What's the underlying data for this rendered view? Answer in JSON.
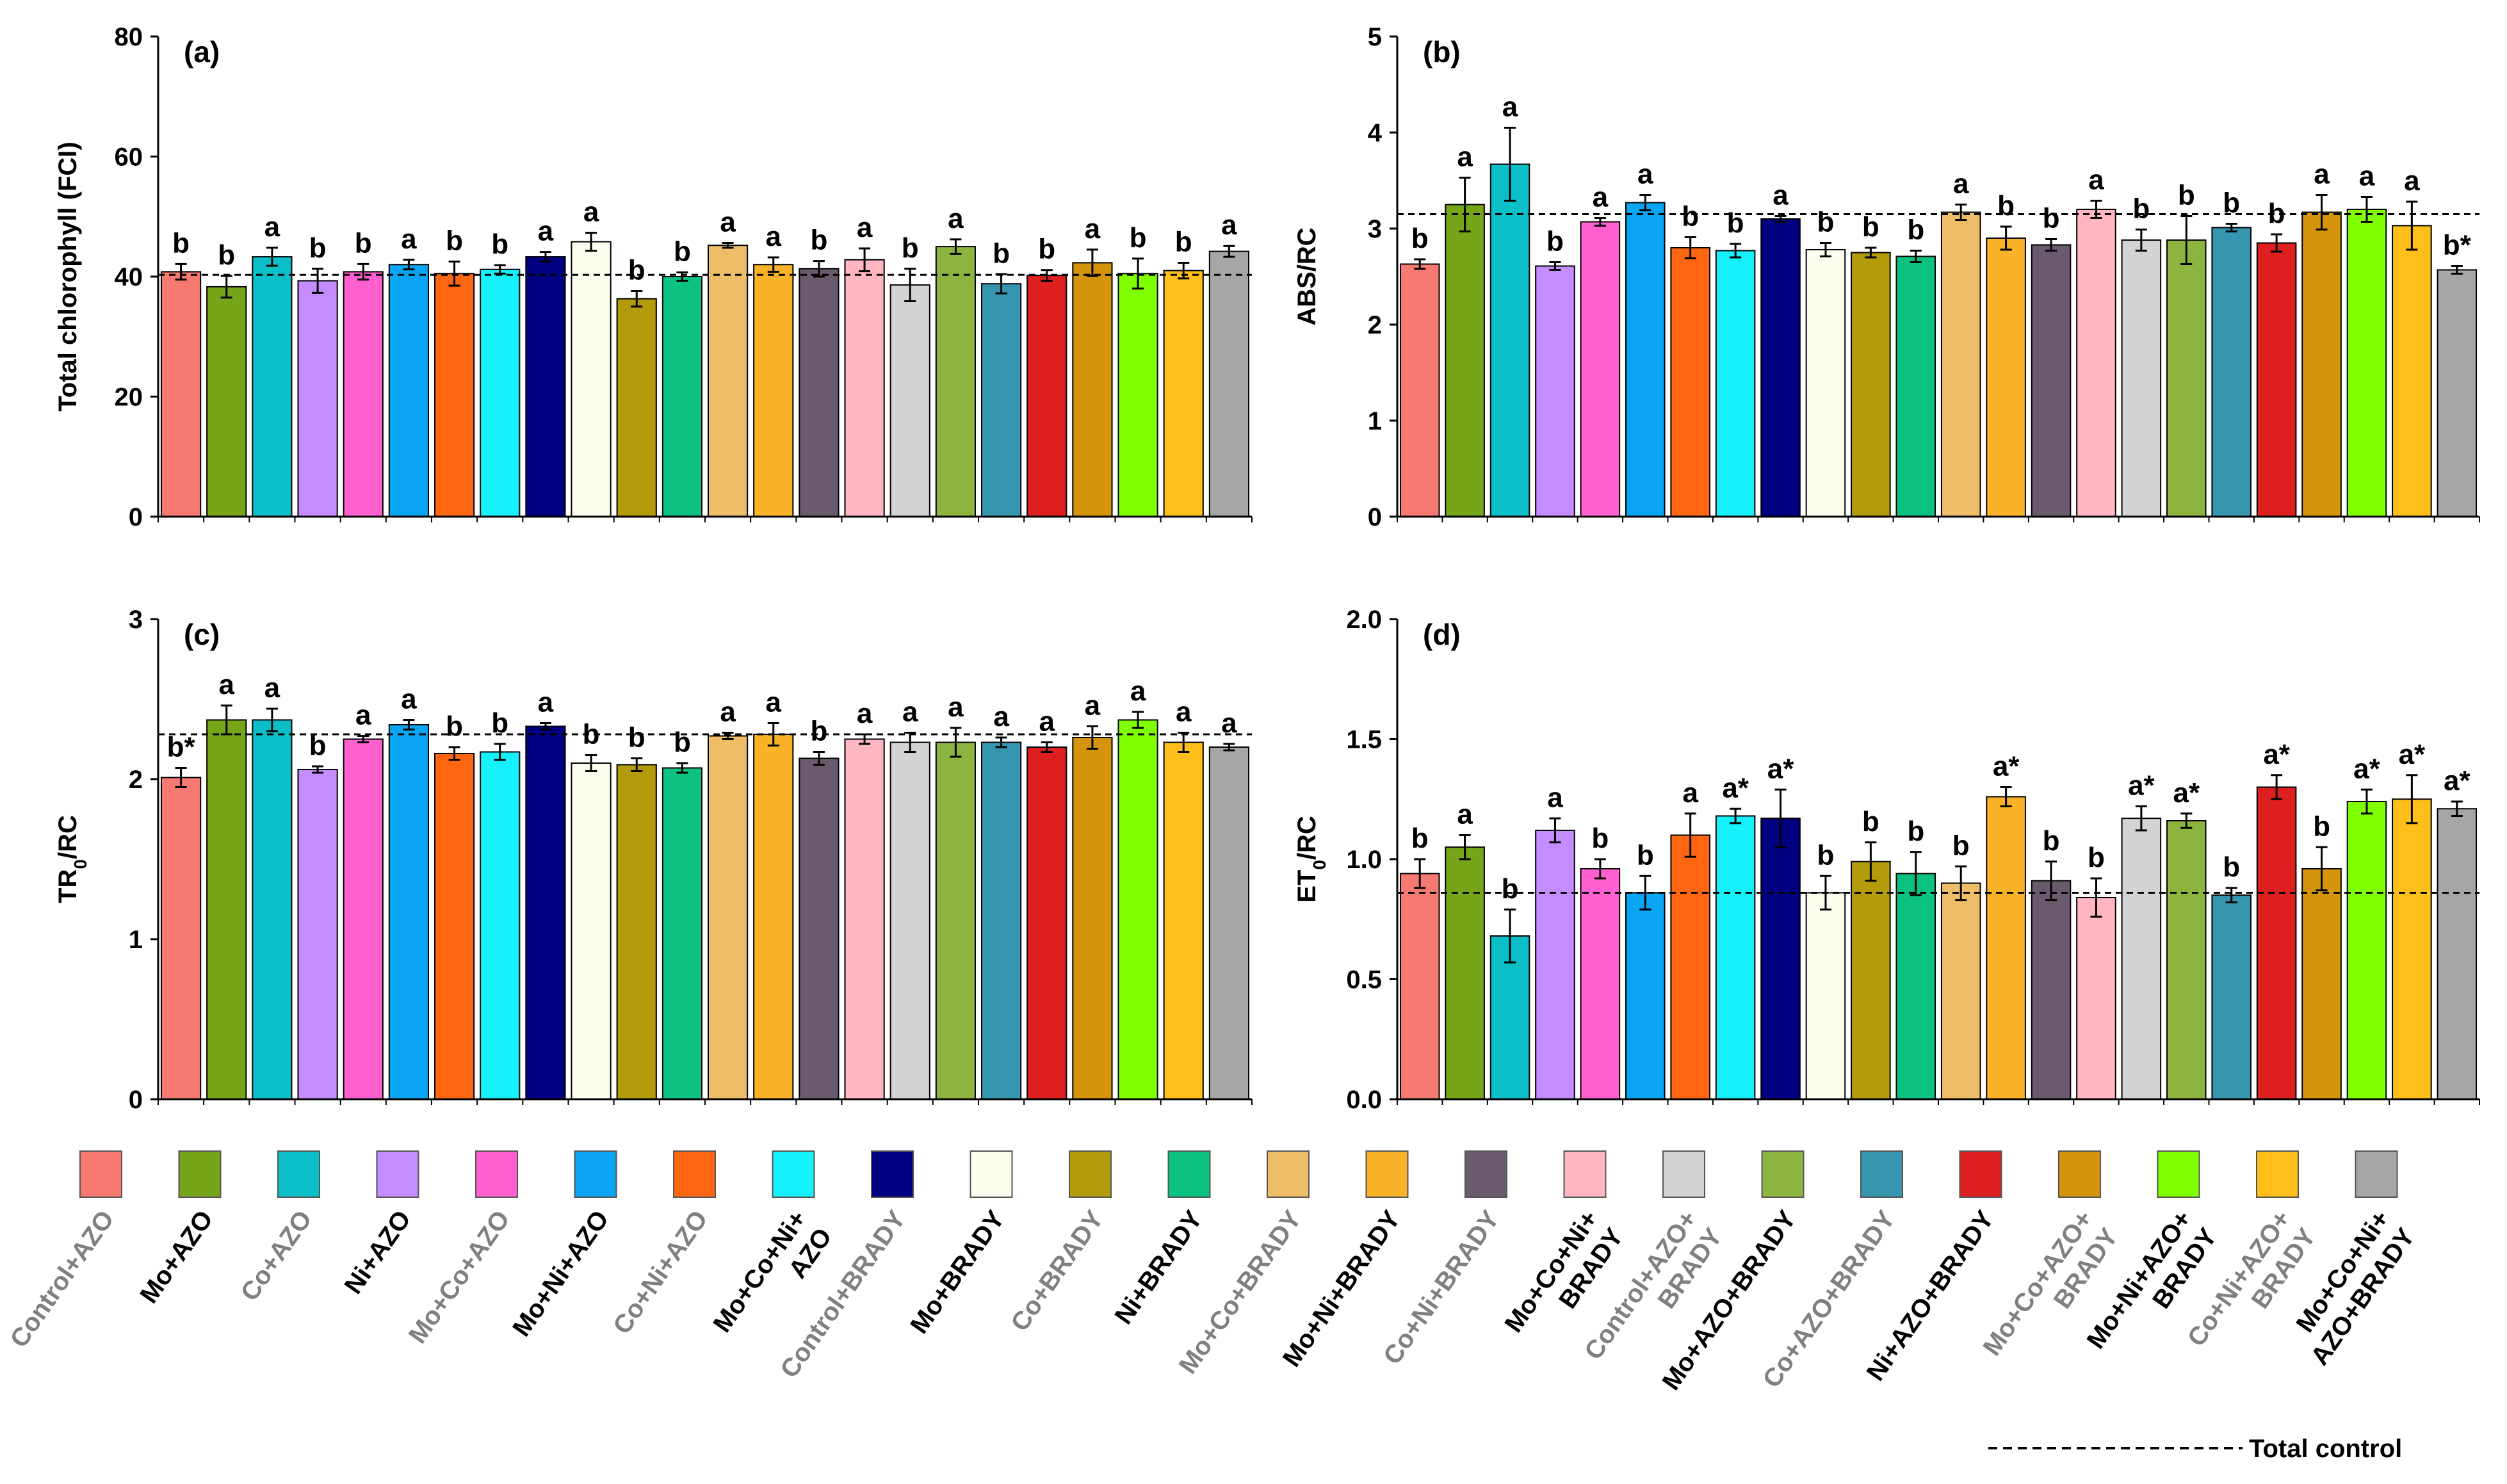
{
  "treatments": [
    {
      "label": "Control+AZO",
      "label_lines": [
        "Control+AZO"
      ],
      "color": "#F77A72",
      "label_color": "#808080"
    },
    {
      "label": "Mo+AZO",
      "label_lines": [
        "Mo+AZO"
      ],
      "color": "#76A51A",
      "label_color": "#000000"
    },
    {
      "label": "Co+AZO",
      "label_lines": [
        "Co+AZO"
      ],
      "color": "#0ABFC8",
      "label_color": "#808080"
    },
    {
      "label": "Ni+AZO",
      "label_lines": [
        "Ni+AZO"
      ],
      "color": "#C58CFF",
      "label_color": "#000000"
    },
    {
      "label": "Mo+Co+AZO",
      "label_lines": [
        "Mo+Co+AZO"
      ],
      "color": "#FF5FCF",
      "label_color": "#808080"
    },
    {
      "label": "Mo+Ni+AZO",
      "label_lines": [
        "Mo+Ni+AZO"
      ],
      "color": "#0AA5F2",
      "label_color": "#000000"
    },
    {
      "label": "Co+Ni+AZO",
      "label_lines": [
        "Co+Ni+AZO"
      ],
      "color": "#FF6611",
      "label_color": "#808080"
    },
    {
      "label": "Mo+Co+Ni+AZO",
      "label_lines": [
        "Mo+Co+Ni+",
        "AZO"
      ],
      "color": "#15F0FA",
      "label_color": "#000000"
    },
    {
      "label": "Control+BRADY",
      "label_lines": [
        "Control+BRADY"
      ],
      "color": "#000080",
      "label_color": "#808080"
    },
    {
      "label": "Mo+BRADY",
      "label_lines": [
        "Mo+BRADY"
      ],
      "color": "#FDFDEE",
      "label_color": "#000000"
    },
    {
      "label": "Co+BRADY",
      "label_lines": [
        "Co+BRADY"
      ],
      "color": "#B39B0B",
      "label_color": "#808080"
    },
    {
      "label": "Ni+BRADY",
      "label_lines": [
        "Ni+BRADY"
      ],
      "color": "#0CC281",
      "label_color": "#000000"
    },
    {
      "label": "Mo+Co+BRADY",
      "label_lines": [
        "Mo+Co+BRADY"
      ],
      "color": "#EDBD67",
      "label_color": "#808080"
    },
    {
      "label": "Mo+Ni+BRADY",
      "label_lines": [
        "Mo+Ni+BRADY"
      ],
      "color": "#FAB228",
      "label_color": "#000000"
    },
    {
      "label": "Co+Ni+BRADY",
      "label_lines": [
        "Co+Ni+BRADY"
      ],
      "color": "#6A5A6D",
      "label_color": "#808080"
    },
    {
      "label": "Mo+Co+Ni+BRADY",
      "label_lines": [
        "Mo+Co+Ni+",
        "BRADY"
      ],
      "color": "#FFB6C1",
      "label_color": "#000000"
    },
    {
      "label": "Control+AZO+BRADY",
      "label_lines": [
        "Control+AZO+",
        "BRADY"
      ],
      "color": "#D3D3D3",
      "label_color": "#808080"
    },
    {
      "label": "Mo+AZO+BRADY",
      "label_lines": [
        "Mo+AZO+BRADY"
      ],
      "color": "#8DB43F",
      "label_color": "#000000"
    },
    {
      "label": "Co+AZO+BRADY",
      "label_lines": [
        "Co+AZO+BRADY"
      ],
      "color": "#3696B0",
      "label_color": "#808080"
    },
    {
      "label": "Ni+AZO+BRADY",
      "label_lines": [
        "Ni+AZO+BRADY"
      ],
      "color": "#DE1F1F",
      "label_color": "#000000"
    },
    {
      "label": "Mo+Co+AZO+BRADY",
      "label_lines": [
        "Mo+Co+AZO+",
        "BRADY"
      ],
      "color": "#D4950C",
      "label_color": "#808080"
    },
    {
      "label": "Mo+Ni+AZO+BRADY",
      "label_lines": [
        "Mo+Ni+AZO+",
        "BRADY"
      ],
      "color": "#7FFF00",
      "label_color": "#000000"
    },
    {
      "label": "Co+Ni+AZO+BRADY",
      "label_lines": [
        "Co+Ni+AZO+",
        "BRADY"
      ],
      "color": "#FFBF1A",
      "label_color": "#808080"
    },
    {
      "label": "Mo+Co+Ni+AZO+BRADY",
      "label_lines": [
        "Mo+Co+Ni+",
        "AZO+BRADY"
      ],
      "color": "#A6A6A6",
      "label_color": "#000000"
    }
  ],
  "legend": {
    "total_control_label": "Total control"
  },
  "chart_data": [
    {
      "panel": "(a)",
      "type": "bar",
      "ylabel": "Total chlorophyll (FCI)",
      "ylim": [
        0,
        80
      ],
      "yticks": [
        "0",
        "20",
        "40",
        "60",
        "80"
      ],
      "tick_values": [
        0,
        20,
        40,
        60,
        80
      ],
      "reference_line": 40.3,
      "values": [
        40.8,
        38.3,
        43.3,
        39.3,
        40.8,
        42.0,
        40.5,
        41.2,
        43.3,
        45.8,
        36.3,
        40.0,
        45.2,
        42.0,
        41.3,
        42.8,
        38.6,
        45.0,
        38.8,
        40.2,
        42.3,
        40.5,
        41.0,
        44.2
      ],
      "errors": [
        1.3,
        1.8,
        1.5,
        2.0,
        1.3,
        0.8,
        2.0,
        0.7,
        0.8,
        1.5,
        1.3,
        0.7,
        0.4,
        1.2,
        1.3,
        1.9,
        2.7,
        1.2,
        1.6,
        0.9,
        2.2,
        2.5,
        1.3,
        0.9
      ],
      "sig": [
        "b",
        "b",
        "a",
        "b",
        "b",
        "a",
        "b",
        "b",
        "a",
        "a",
        "b",
        "b",
        "a",
        "a",
        "b",
        "a",
        "b",
        "a",
        "b",
        "b",
        "a",
        "b",
        "b",
        "a"
      ]
    },
    {
      "panel": "(b)",
      "type": "bar",
      "ylabel": "ABS/RC",
      "ylim": [
        0,
        5
      ],
      "yticks": [
        "0",
        "1",
        "2",
        "3",
        "4",
        "5"
      ],
      "tick_values": [
        0,
        1,
        2,
        3,
        4,
        5
      ],
      "reference_line": 3.15,
      "values": [
        2.63,
        3.25,
        3.67,
        2.61,
        3.07,
        3.27,
        2.8,
        2.77,
        3.1,
        2.78,
        2.75,
        2.71,
        3.17,
        2.9,
        2.83,
        3.2,
        2.88,
        2.88,
        3.01,
        2.85,
        3.17,
        3.2,
        3.03,
        2.57
      ],
      "errors": [
        0.05,
        0.28,
        0.38,
        0.04,
        0.04,
        0.08,
        0.11,
        0.07,
        0.03,
        0.07,
        0.05,
        0.06,
        0.08,
        0.12,
        0.06,
        0.09,
        0.11,
        0.25,
        0.04,
        0.09,
        0.18,
        0.13,
        0.25,
        0.04
      ],
      "sig": [
        "b",
        "a",
        "a",
        "b",
        "a",
        "a",
        "b",
        "b",
        "a",
        "b",
        "b",
        "b",
        "a",
        "b",
        "b",
        "a",
        "b",
        "b",
        "b",
        "b",
        "a",
        "a",
        "a",
        "b*"
      ]
    },
    {
      "panel": "(c)",
      "type": "bar",
      "ylabel": "TR0/RC",
      "ylim": [
        0,
        3
      ],
      "yticks": [
        "0",
        "1",
        "2",
        "3"
      ],
      "tick_values": [
        0,
        1,
        2,
        3
      ],
      "reference_line": 2.28,
      "values": [
        2.01,
        2.37,
        2.37,
        2.06,
        2.25,
        2.34,
        2.16,
        2.17,
        2.33,
        2.1,
        2.09,
        2.07,
        2.27,
        2.28,
        2.13,
        2.25,
        2.23,
        2.23,
        2.23,
        2.2,
        2.26,
        2.37,
        2.23,
        2.2
      ],
      "errors": [
        0.06,
        0.09,
        0.07,
        0.02,
        0.02,
        0.03,
        0.04,
        0.05,
        0.02,
        0.05,
        0.04,
        0.03,
        0.02,
        0.07,
        0.04,
        0.03,
        0.06,
        0.09,
        0.03,
        0.03,
        0.07,
        0.05,
        0.06,
        0.02
      ],
      "sig": [
        "b*",
        "a",
        "a",
        "b",
        "a",
        "a",
        "b",
        "b",
        "a",
        "b",
        "b",
        "b",
        "a",
        "a",
        "b",
        "a",
        "a",
        "a",
        "a",
        "a",
        "a",
        "a",
        "a",
        "a"
      ]
    },
    {
      "panel": "(d)",
      "type": "bar",
      "ylabel": "ET0/RC",
      "ylim": [
        0,
        2.0
      ],
      "yticks": [
        "0.0",
        "0.5",
        "1.0",
        "1.5",
        "2.0"
      ],
      "tick_values": [
        0,
        0.5,
        1.0,
        1.5,
        2.0
      ],
      "reference_line": 0.86,
      "values": [
        0.94,
        1.05,
        0.68,
        1.12,
        0.96,
        0.86,
        1.1,
        1.18,
        1.17,
        0.86,
        0.99,
        0.94,
        0.9,
        1.26,
        0.91,
        0.84,
        1.17,
        1.16,
        0.85,
        1.3,
        0.96,
        1.24,
        1.25,
        1.21
      ],
      "errors": [
        0.06,
        0.05,
        0.11,
        0.05,
        0.04,
        0.07,
        0.09,
        0.03,
        0.12,
        0.07,
        0.08,
        0.09,
        0.07,
        0.04,
        0.08,
        0.08,
        0.05,
        0.03,
        0.03,
        0.05,
        0.09,
        0.05,
        0.1,
        0.03
      ],
      "sig": [
        "b",
        "a",
        "b",
        "a",
        "b",
        "b",
        "a",
        "a*",
        "a*",
        "b",
        "b",
        "b",
        "b",
        "a*",
        "b",
        "b",
        "a*",
        "a*",
        "b",
        "a*",
        "b",
        "a*",
        "a*",
        "a*"
      ]
    }
  ]
}
